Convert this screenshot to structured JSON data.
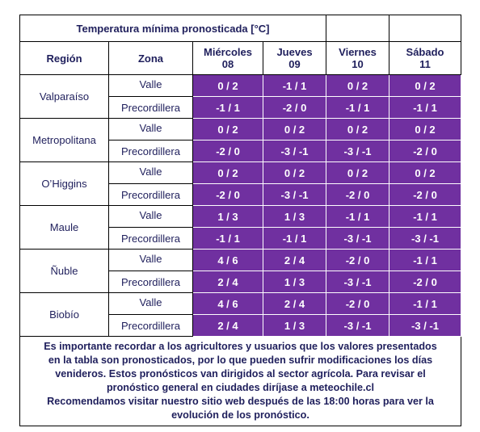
{
  "header": {
    "title": "Temperatura mínima pronosticada [°C]"
  },
  "table": {
    "columns": [
      "Región",
      "Zona",
      [
        "Miércoles",
        "08"
      ],
      [
        "Jueves",
        "09"
      ],
      [
        "Viernes",
        "10"
      ],
      [
        "Sábado",
        "11"
      ]
    ],
    "rows": [
      {
        "region": "Valparaíso",
        "zones": [
          {
            "zona": "Valle",
            "values": [
              "0 / 2",
              "-1 / 1",
              "0 / 2",
              "0 / 2"
            ]
          },
          {
            "zona": "Precordillera",
            "values": [
              "-1 / 1",
              "-2 / 0",
              "-1 / 1",
              "-1 / 1"
            ]
          }
        ]
      },
      {
        "region": "Metropolitana",
        "zones": [
          {
            "zona": "Valle",
            "values": [
              "0 / 2",
              "0 / 2",
              "0 / 2",
              "0 / 2"
            ]
          },
          {
            "zona": "Precordillera",
            "values": [
              "-2 / 0",
              "-3 / -1",
              "-3 / -1",
              "-2 / 0"
            ]
          }
        ]
      },
      {
        "region": "O’Higgins",
        "zones": [
          {
            "zona": "Valle",
            "values": [
              "0 / 2",
              "0 / 2",
              "0 / 2",
              "0 / 2"
            ]
          },
          {
            "zona": "Precordillera",
            "values": [
              "-2 / 0",
              "-3 / -1",
              "-2 / 0",
              "-2 / 0"
            ]
          }
        ]
      },
      {
        "region": "Maule",
        "zones": [
          {
            "zona": "Valle",
            "values": [
              "1 / 3",
              "1 / 3",
              "-1 / 1",
              "-1 / 1"
            ]
          },
          {
            "zona": "Precordillera",
            "values": [
              "-1 / 1",
              "-1 / 1",
              "-3 / -1",
              "-3 / -1"
            ]
          }
        ]
      },
      {
        "region": "Ñuble",
        "zones": [
          {
            "zona": "Valle",
            "values": [
              "4 / 6",
              "2 / 4",
              "-2 / 0",
              "-1 / 1"
            ]
          },
          {
            "zona": "Precordillera",
            "values": [
              "2 / 4",
              "1 / 3",
              "-3 / -1",
              "-2 / 0"
            ]
          }
        ]
      },
      {
        "region": "Biobío",
        "zones": [
          {
            "zona": "Valle",
            "values": [
              "4 / 6",
              "2 / 4",
              "-2 / 0",
              "-1 / 1"
            ]
          },
          {
            "zona": "Precordillera",
            "values": [
              "2 / 4",
              "1 / 3",
              "-3 / -1",
              "-3 / -1"
            ]
          }
        ]
      }
    ]
  },
  "footer": {
    "lines": [
      "Es importante recordar a los agricultores y usuarios que los valores presentados",
      "en la tabla son pronosticados, por lo que pueden sufrir modificaciones los días",
      "venideros. Estos pronósticos van dirigidos al sector agrícola. Para revisar el",
      "pronóstico general en ciudades diríjase a meteochile.cl",
      "Recomendamos visitar nuestro sitio web después de las 18:00 horas para ver la",
      "evolución de los pronóstico."
    ]
  }
}
